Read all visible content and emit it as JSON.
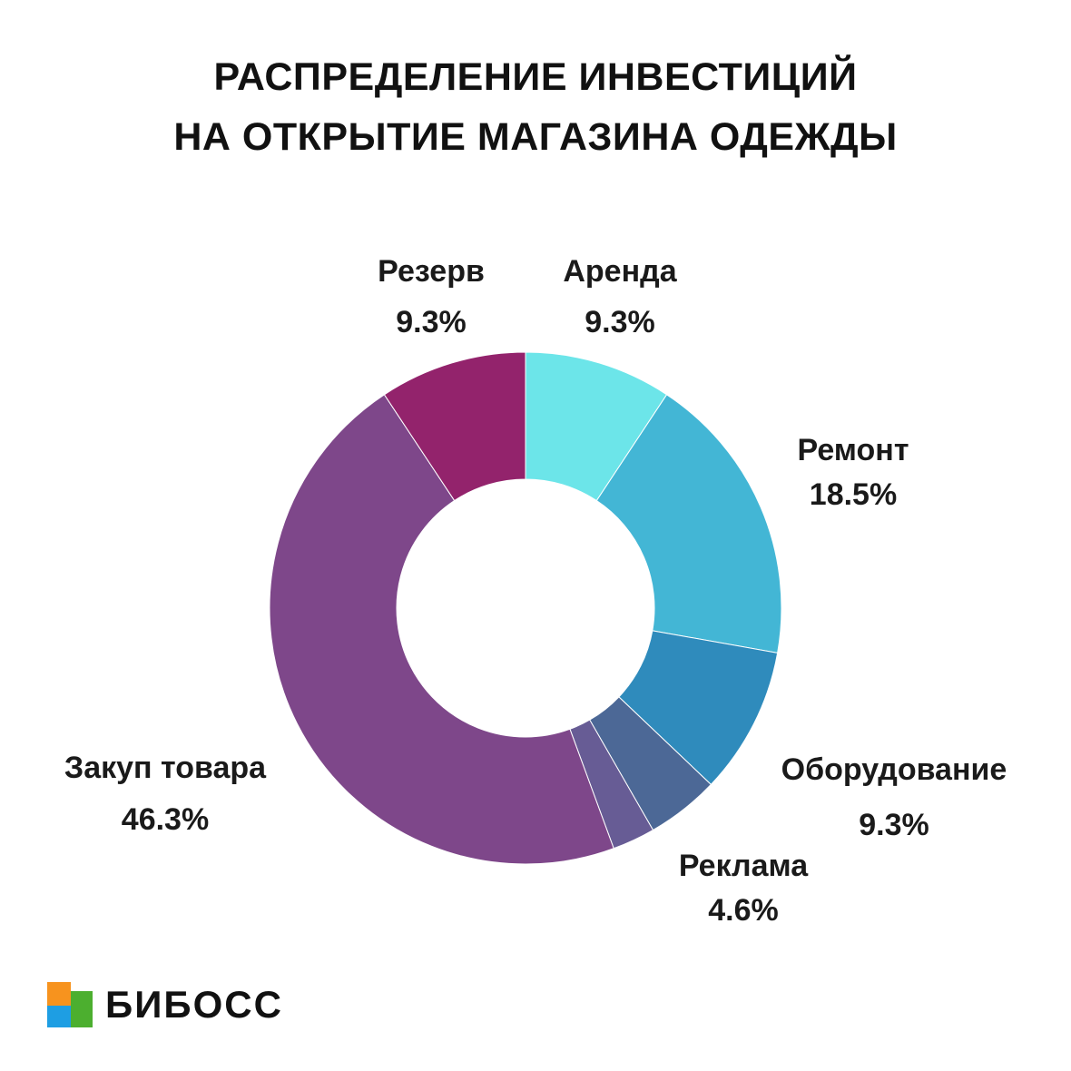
{
  "title": {
    "line1": "РАСПРЕДЕЛЕНИЕ ИНВЕСТИЦИЙ",
    "line2": "НА ОТКРЫТИЕ МАГАЗИНА ОДЕЖДЫ"
  },
  "chart_data": {
    "type": "pie",
    "donut": true,
    "title": "РАСПРЕДЕЛЕНИЕ ИНВЕСТИЦИЙ НА ОТКРЫТИЕ МАГАЗИНА ОДЕЖДЫ",
    "legend": "none",
    "categories": [
      "Аренда",
      "Ремонт",
      "Оборудование",
      "Реклама",
      "Закуп товара",
      "Резерв"
    ],
    "values": [
      9.3,
      18.5,
      9.3,
      4.6,
      46.3,
      9.3
    ],
    "labels": [
      "9.3%",
      "18.5%",
      "9.3%",
      "4.6%",
      "46.3%",
      "9.3%"
    ],
    "colors": [
      "#6ce5e9",
      "#43b6d5",
      "#2f8bbc",
      "#4c6896",
      "#7e478a",
      "#93236c"
    ],
    "extra_slice": {
      "value": 2.7,
      "color": "#675c95"
    }
  },
  "brand": {
    "name": "БИБОСС",
    "logo_colors": [
      "#f7931e",
      "#1e9ee3",
      "#4caf2f"
    ]
  }
}
